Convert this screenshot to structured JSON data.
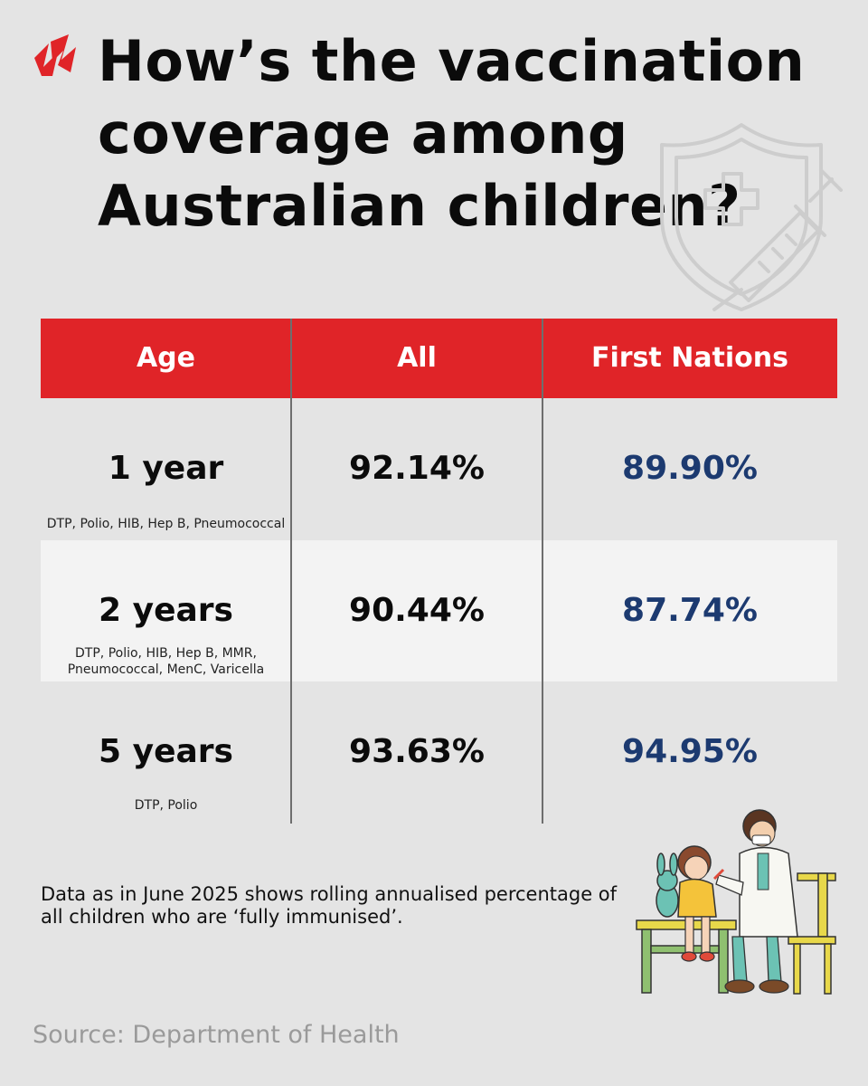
{
  "logo": {
    "icon": "sbs-swoosh-logo",
    "color": "#e02428"
  },
  "title": {
    "line1": "How’s the vaccination",
    "line2": "coverage among",
    "line3": "Australian children?"
  },
  "table": {
    "headers": {
      "age": "Age",
      "all": "All",
      "first_nations": "First Nations"
    },
    "header_color": "#e02428",
    "first_nations_color": "#1c3a70",
    "rows": [
      {
        "age": "1 year",
        "vaccines_line1": "DTP, Polio, HIB, Hep B, Pneumococcal",
        "vaccines_line2": "",
        "all": "92.14%",
        "first_nations": "89.90%"
      },
      {
        "age": "2 years",
        "vaccines_line1": "DTP, Polio, HIB, Hep B, MMR,",
        "vaccines_line2": "Pneumococcal, MenC, Varicella",
        "all": "90.44%",
        "first_nations": "87.74%"
      },
      {
        "age": "5 years",
        "vaccines_line1": "DTP, Polio",
        "vaccines_line2": "",
        "all": "93.63%",
        "first_nations": "94.95%"
      }
    ]
  },
  "note": {
    "line1": "Data as in June 2025 shows rolling annualised percentage of",
    "line2": "all children who are ‘fully immunised’."
  },
  "source": "Source: Department of Health",
  "decor": {
    "background_icon": "shield-syringe-icon",
    "illustration": "doctor-vaccinating-child-illustration"
  }
}
